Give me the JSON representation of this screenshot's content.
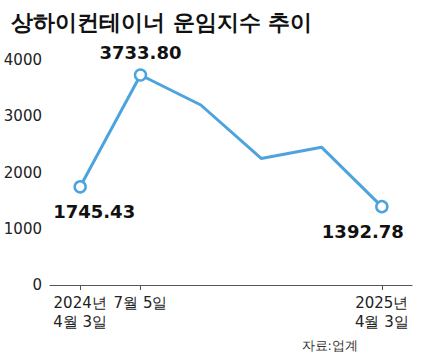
{
  "chart_data": {
    "type": "line",
    "title": "상하이컨테이너 운임지수 추이",
    "source": "자료:업계",
    "categories": [
      "2024년 4월 3일",
      "7월 5일",
      null,
      null,
      null,
      "2025년 4월 3일"
    ],
    "values": [
      1745.43,
      3733.8,
      3200,
      2250,
      2450,
      1392.78
    ],
    "value_labels": [
      "1745.43",
      "3733.80",
      null,
      null,
      null,
      "1392.78"
    ],
    "data_labels": true,
    "color": "#4da3dd",
    "marker": "circle",
    "ylim": [
      0,
      4000
    ],
    "yticks": [
      0,
      1000,
      2000,
      3000,
      4000
    ],
    "grid": false
  }
}
